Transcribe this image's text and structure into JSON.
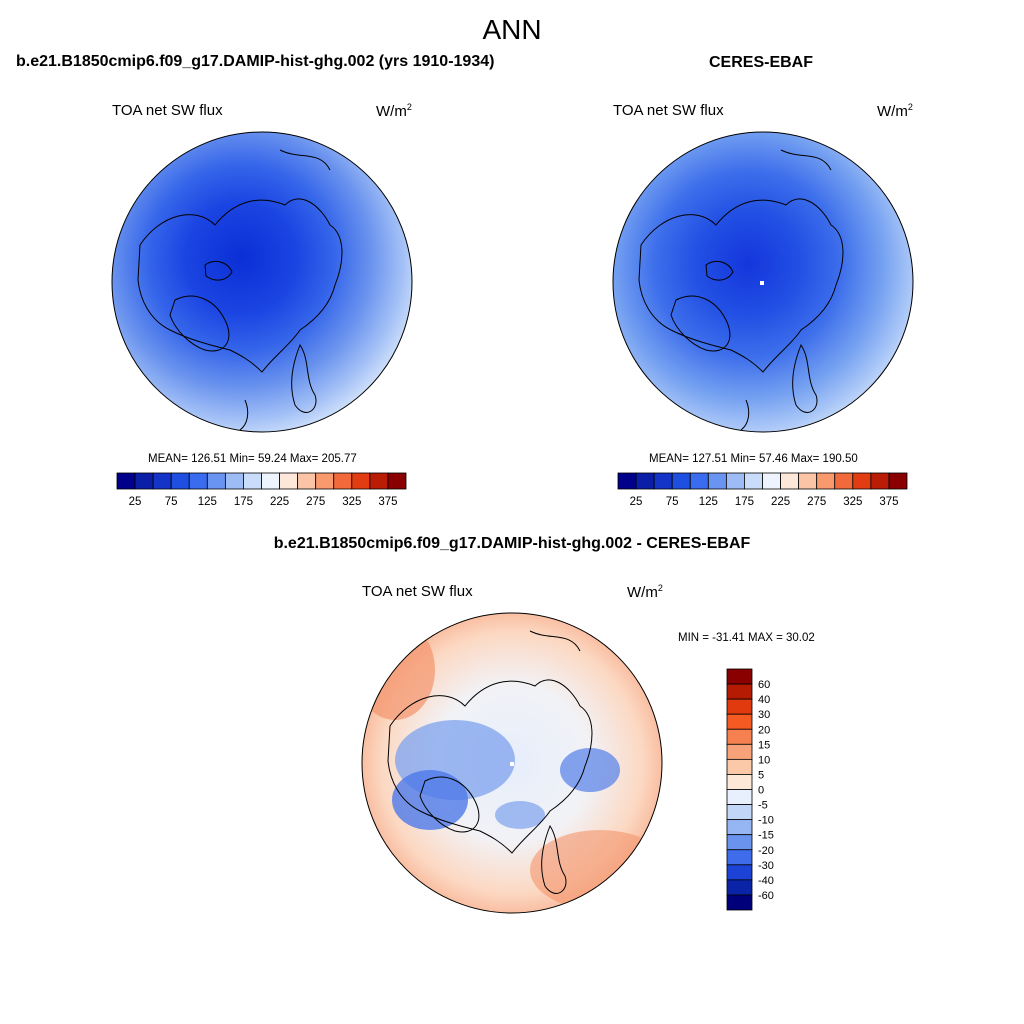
{
  "page": {
    "title": "ANN"
  },
  "panels": [
    {
      "case_title": "b.e21.B1850cmip6.f09_g17.DAMIP-hist-ghg.002 (yrs 1910-1934)",
      "variable": "TOA net SW flux",
      "units": "W/m",
      "units_exp": "2",
      "stats": "MEAN= 126.51  Min=  59.24  Max= 205.77"
    },
    {
      "case_title": "CERES-EBAF",
      "variable": "TOA net SW flux",
      "units": "W/m",
      "units_exp": "2",
      "stats": "MEAN= 127.51  Min=  57.46  Max= 190.50"
    },
    {
      "case_title": "b.e21.B1850cmip6.f09_g17.DAMIP-hist-ghg.002 - CERES-EBAF",
      "variable": "TOA net SW flux",
      "units": "W/m",
      "units_exp": "2",
      "stats": "MIN = -31.41 MAX =  30.02"
    }
  ],
  "colorbar_abs": {
    "labels": [
      "25",
      "75",
      "125",
      "175",
      "225",
      "275",
      "325",
      "375"
    ],
    "colors": [
      "#00008a",
      "#0a1ea8",
      "#1434c8",
      "#1f4fe0",
      "#3a6cf0",
      "#6a94f2",
      "#9dbcf6",
      "#c9dcfa",
      "#eef4fd",
      "#fde7d8",
      "#fbc4a6",
      "#f89a6e",
      "#f26a3c",
      "#e23d12",
      "#bb1c06",
      "#8a0000"
    ]
  },
  "colorbar_diff": {
    "labels": [
      "60",
      "40",
      "30",
      "20",
      "15",
      "10",
      "5",
      "0",
      "-5",
      "-10",
      "-15",
      "-20",
      "-30",
      "-40",
      "-60"
    ],
    "colors": [
      "#8a0000",
      "#b51a02",
      "#e03a0e",
      "#f45a22",
      "#f6804f",
      "#f8a27a",
      "#fbc9a8",
      "#fde8d8",
      "#e8f0fd",
      "#c2d6f8",
      "#96b6f3",
      "#6a93ee",
      "#3f6cea",
      "#1c43d6",
      "#0a24a8",
      "#00007a"
    ]
  }
}
